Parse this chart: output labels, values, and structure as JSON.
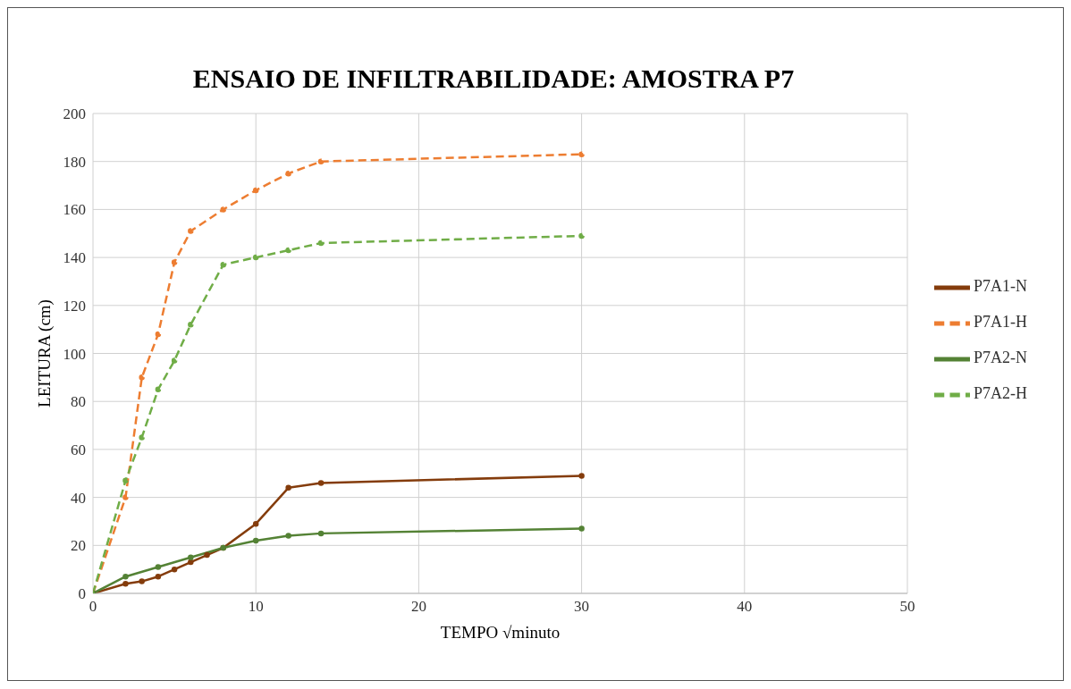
{
  "chart_data": {
    "type": "line",
    "title": "ENSAIO DE INFILTRABILIDADE: AMOSTRA P7",
    "xlabel": "TEMPO   √minuto",
    "ylabel": "LEITURA (cm)",
    "xlim": [
      0,
      50
    ],
    "xticks": [
      0,
      10,
      20,
      30,
      40,
      50
    ],
    "ylim": [
      0,
      200
    ],
    "yticks": [
      0,
      20,
      40,
      60,
      80,
      100,
      120,
      140,
      160,
      180,
      200
    ],
    "grid": true,
    "legend": "right",
    "marker": "circle",
    "series": [
      {
        "name": "P7A1-N",
        "color": "#843c0c",
        "line_style": "solid",
        "x": [
          0,
          2,
          3,
          4,
          5,
          6,
          7,
          8,
          10,
          12,
          14,
          30
        ],
        "values": [
          0,
          4,
          5,
          7,
          10,
          13,
          16,
          19,
          29,
          44,
          46,
          49
        ]
      },
      {
        "name": "P7A1-H",
        "color": "#ed7d31",
        "line_style": "dashed",
        "x": [
          0,
          2,
          3,
          4,
          5,
          6,
          8,
          10,
          12,
          14,
          30
        ],
        "values": [
          0,
          40,
          90,
          108,
          138,
          151,
          160,
          168,
          175,
          180,
          183
        ]
      },
      {
        "name": "P7A2-N",
        "color": "#548235",
        "line_style": "solid",
        "x": [
          0,
          2,
          4,
          6,
          8,
          10,
          12,
          14,
          30
        ],
        "values": [
          0,
          7,
          11,
          15,
          19,
          22,
          24,
          25,
          27
        ]
      },
      {
        "name": "P7A2-H",
        "color": "#70ad47",
        "line_style": "dashed",
        "x": [
          0,
          2,
          3,
          4,
          5,
          6,
          8,
          10,
          12,
          14,
          30
        ],
        "values": [
          0,
          47,
          65,
          85,
          97,
          112,
          137,
          140,
          143,
          146,
          149
        ]
      }
    ]
  }
}
